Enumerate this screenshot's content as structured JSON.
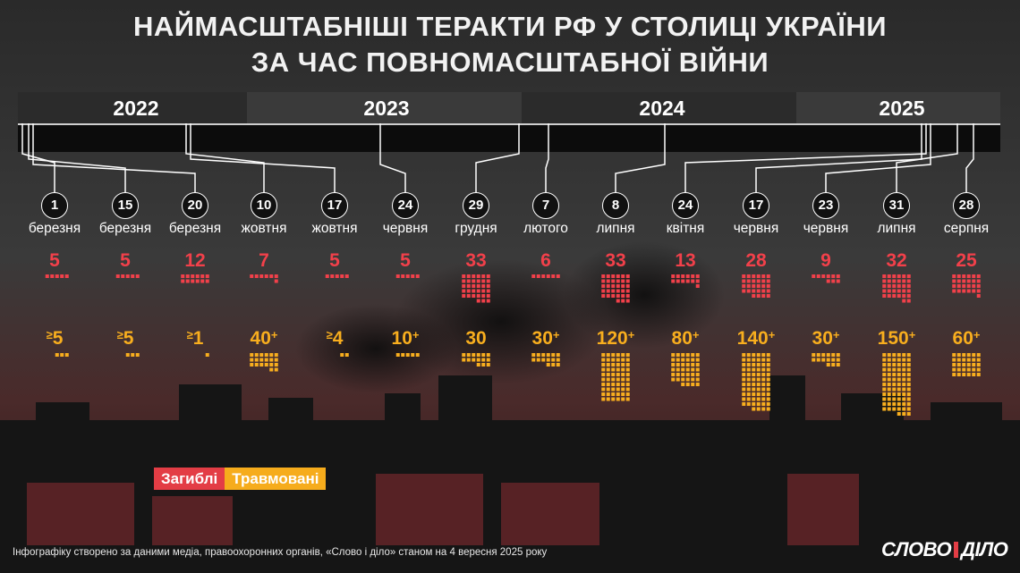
{
  "title_line1": "НАЙМАСШТАБНІШІ ТЕРАКТИ РФ У СТОЛИЦІ УКРАЇНИ",
  "title_line2": "ЗА ЧАС ПОВНОМАСШТАБНОЇ ВІЙНИ",
  "years": [
    "2022",
    "2023",
    "2024",
    "2025"
  ],
  "legend": {
    "killed": "Загиблі",
    "injured": "Травмовані"
  },
  "source": "Інфографіку створено за даними медіа, правоохоронних органів, «Слово і діло» станом на 4 вересня 2025 року",
  "logo": {
    "left": "СЛОВО",
    "right": "ДІЛО"
  },
  "colors": {
    "killed": "#f2404a",
    "injured": "#f8ae1e",
    "background": "#1b1b1b"
  },
  "chart_data": {
    "type": "table",
    "series": [
      {
        "name": "Загиблі",
        "values": [
          5,
          5,
          12,
          7,
          5,
          5,
          33,
          6,
          33,
          13,
          28,
          9,
          32,
          25
        ]
      },
      {
        "name": "Травмовані",
        "values": [
          5,
          5,
          1,
          40,
          4,
          10,
          30,
          30,
          120,
          80,
          140,
          30,
          150,
          60
        ]
      }
    ],
    "events": [
      {
        "day": "1",
        "month": "березня",
        "year": 2022,
        "killed": 5,
        "killed_label": "5",
        "injured": 5,
        "injured_prefix": "≥",
        "injured_value": "5",
        "injured_suffix": ""
      },
      {
        "day": "15",
        "month": "березня",
        "year": 2022,
        "killed": 5,
        "killed_label": "5",
        "injured": 5,
        "injured_prefix": "≥",
        "injured_value": "5",
        "injured_suffix": ""
      },
      {
        "day": "20",
        "month": "березня",
        "year": 2022,
        "killed": 12,
        "killed_label": "12",
        "injured": 1,
        "injured_prefix": "≥",
        "injured_value": "1",
        "injured_suffix": ""
      },
      {
        "day": "10",
        "month": "жовтня",
        "year": 2022,
        "killed": 7,
        "killed_label": "7",
        "injured": 40,
        "injured_prefix": "",
        "injured_value": "40",
        "injured_suffix": "+"
      },
      {
        "day": "17",
        "month": "жовтня",
        "year": 2022,
        "killed": 5,
        "killed_label": "5",
        "injured": 4,
        "injured_prefix": "≥",
        "injured_value": "4",
        "injured_suffix": ""
      },
      {
        "day": "24",
        "month": "червня",
        "year": 2023,
        "killed": 5,
        "killed_label": "5",
        "injured": 10,
        "injured_prefix": "",
        "injured_value": "10",
        "injured_suffix": "+"
      },
      {
        "day": "29",
        "month": "грудня",
        "year": 2023,
        "killed": 33,
        "killed_label": "33",
        "injured": 30,
        "injured_prefix": "",
        "injured_value": "30",
        "injured_suffix": ""
      },
      {
        "day": "7",
        "month": "лютого",
        "year": 2024,
        "killed": 6,
        "killed_label": "6",
        "injured": 30,
        "injured_prefix": "",
        "injured_value": "30",
        "injured_suffix": "+"
      },
      {
        "day": "8",
        "month": "липня",
        "year": 2024,
        "killed": 33,
        "killed_label": "33",
        "injured": 120,
        "injured_prefix": "",
        "injured_value": "120",
        "injured_suffix": "+"
      },
      {
        "day": "24",
        "month": "квітня",
        "year": 2025,
        "killed": 13,
        "killed_label": "13",
        "injured": 80,
        "injured_prefix": "",
        "injured_value": "80",
        "injured_suffix": "+"
      },
      {
        "day": "17",
        "month": "червня",
        "year": 2025,
        "killed": 28,
        "killed_label": "28",
        "injured": 140,
        "injured_prefix": "",
        "injured_value": "140",
        "injured_suffix": "+"
      },
      {
        "day": "23",
        "month": "червня",
        "year": 2025,
        "killed": 9,
        "killed_label": "9",
        "injured": 30,
        "injured_prefix": "",
        "injured_value": "30",
        "injured_suffix": "+"
      },
      {
        "day": "31",
        "month": "липня",
        "year": 2025,
        "killed": 32,
        "killed_label": "32",
        "injured": 150,
        "injured_prefix": "",
        "injured_value": "150",
        "injured_suffix": "+"
      },
      {
        "day": "28",
        "month": "серпня",
        "year": 2025,
        "killed": 25,
        "killed_label": "25",
        "injured": 60,
        "injured_prefix": "",
        "injured_value": "60",
        "injured_suffix": "+"
      }
    ]
  }
}
